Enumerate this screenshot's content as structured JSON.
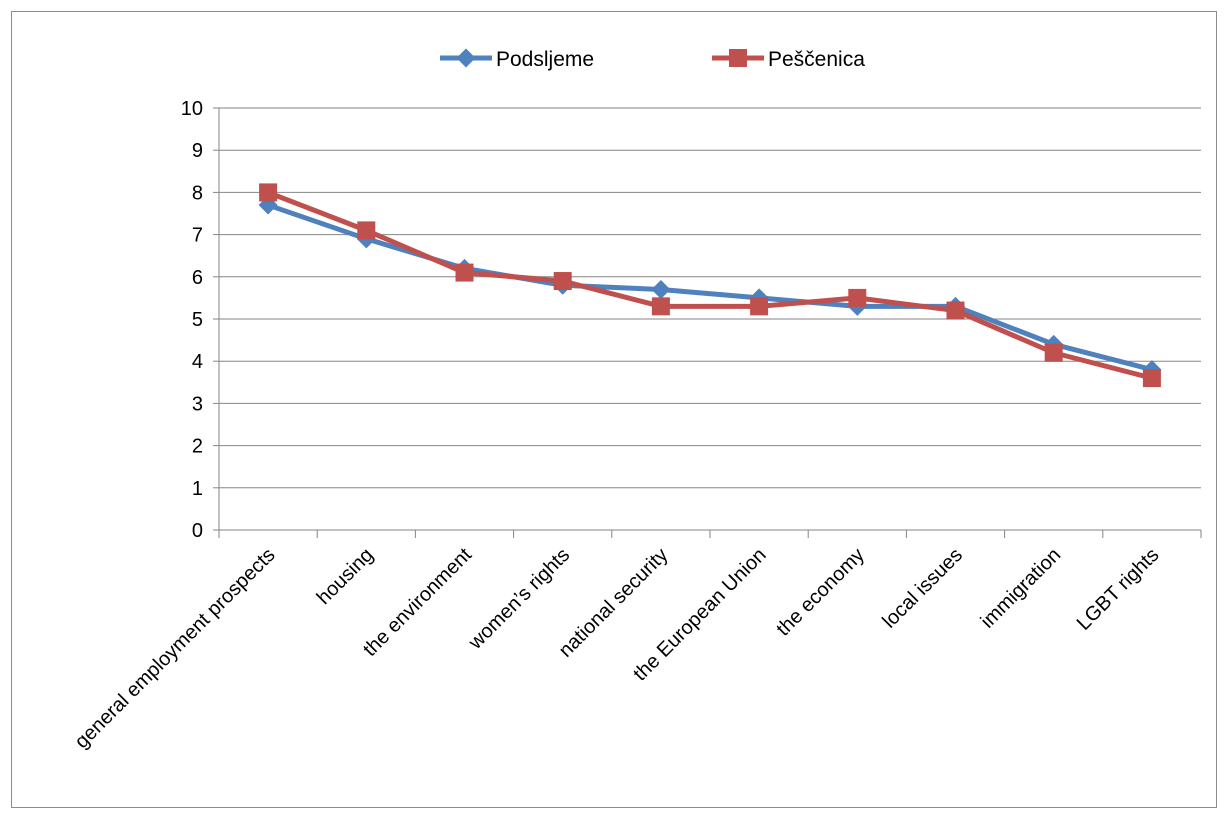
{
  "chart_data": {
    "type": "line",
    "categories": [
      "general employment prospects",
      "housing",
      "the environment",
      "women’s rights",
      "national security",
      "the European Union",
      "the economy",
      "local issues",
      "immigration",
      "LGBT rights"
    ],
    "series": [
      {
        "name": "Podsljeme",
        "color": "#4f81bd",
        "marker": "diamond",
        "values": [
          7.7,
          6.9,
          6.2,
          5.8,
          5.7,
          5.5,
          5.3,
          5.3,
          4.4,
          3.8
        ]
      },
      {
        "name": "Peščenica",
        "color": "#c0504d",
        "marker": "square",
        "values": [
          8.0,
          7.1,
          6.1,
          5.9,
          5.3,
          5.3,
          5.5,
          5.2,
          4.2,
          3.6
        ]
      }
    ],
    "ylim": [
      0,
      10
    ],
    "yticks": [
      0,
      1,
      2,
      3,
      4,
      5,
      6,
      7,
      8,
      9,
      10
    ],
    "grid": true,
    "legend_position": "top-center",
    "title": "",
    "xlabel": "",
    "ylabel": ""
  }
}
